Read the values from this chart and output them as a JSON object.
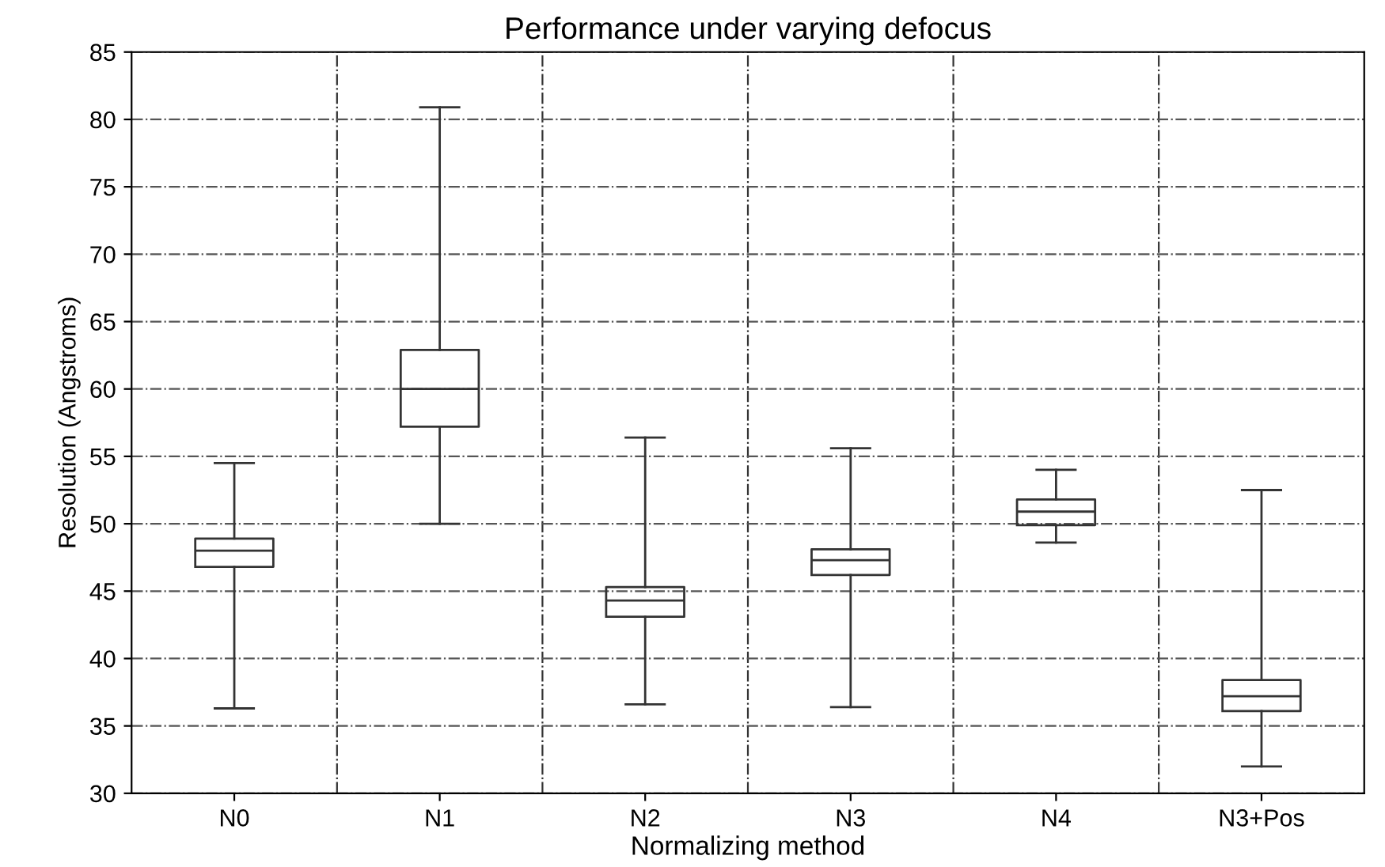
{
  "chart_data": {
    "type": "box",
    "title": "Performance under varying defocus",
    "xlabel": "Normalizing method",
    "ylabel": "Resolution (Angstroms)",
    "categories": [
      "N0",
      "N1",
      "N2",
      "N3",
      "N4",
      "N3+Pos"
    ],
    "boxes": [
      {
        "low": 36.3,
        "q1": 46.8,
        "median": 48.0,
        "q3": 48.9,
        "high": 54.5
      },
      {
        "low": 50.0,
        "q1": 57.2,
        "median": 60.0,
        "q3": 62.9,
        "high": 80.9
      },
      {
        "low": 36.6,
        "q1": 43.1,
        "median": 44.3,
        "q3": 45.3,
        "high": 56.4
      },
      {
        "low": 36.4,
        "q1": 46.2,
        "median": 47.3,
        "q3": 48.1,
        "high": 55.6
      },
      {
        "low": 48.6,
        "q1": 49.9,
        "median": 50.9,
        "q3": 51.8,
        "high": 54.0
      },
      {
        "low": 32.0,
        "q1": 36.1,
        "median": 37.2,
        "q3": 38.4,
        "high": 52.5
      }
    ],
    "color": "#333333",
    "ylim": [
      30,
      85
    ],
    "yticks": [
      30,
      35,
      40,
      45,
      50,
      55,
      60,
      65,
      70,
      75,
      80,
      85
    ],
    "grid": true
  }
}
